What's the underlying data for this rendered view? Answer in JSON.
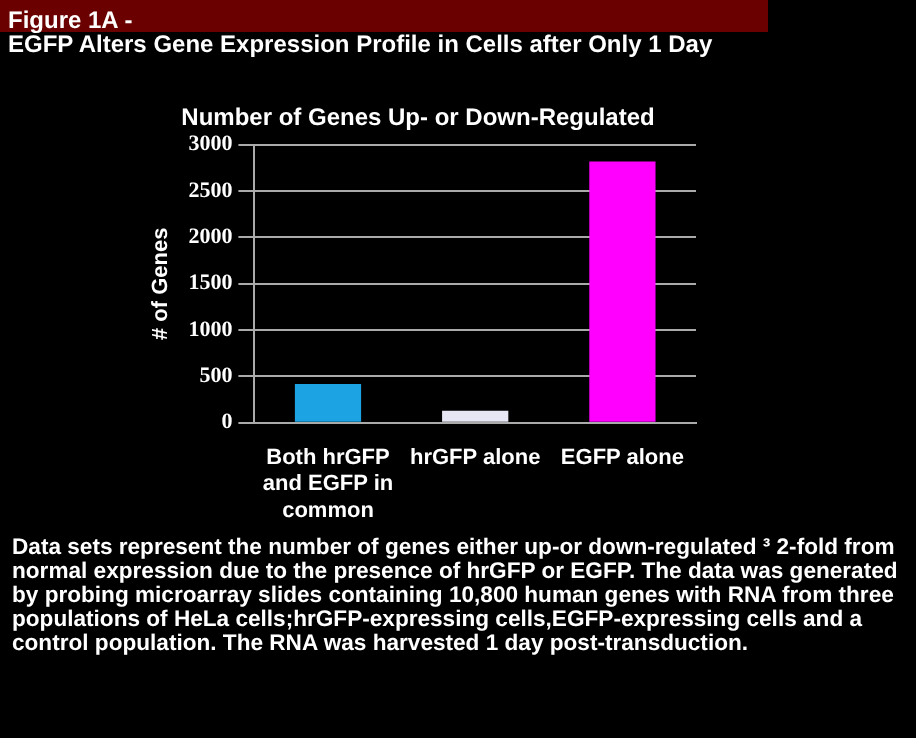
{
  "chart_data": {
    "type": "bar",
    "title": "Figure 1A -\nEGFP Alters Gene Expression Profile in Cells after Only 1 Day",
    "subtitle": "Number of Genes Up- or Down-Regulated",
    "ylabel": "# of Genes",
    "categories": [
      "Both hrGFP and EGFP in common",
      "hrGFP alone",
      "EGFP alone"
    ],
    "values": [
      420,
      130,
      2820
    ],
    "colors": [
      "#1ba3e3",
      "#e6e6f5",
      "#ff00ff"
    ],
    "ylim": [
      0,
      3000
    ],
    "yticks": [
      0,
      500,
      1000,
      1500,
      2000,
      2500,
      3000
    ],
    "grid": "y",
    "annotations": [
      "Data sets represent the number of genes either up-or down-regulated ³ 2-fold from normal expression due to the presence of hrGFP or EGFP.  The data was generated by probing microarray slides containing 10,800 human genes with RNA from three populations of HeLa cells;hrGFP-expressing cells,EGFP-expressing cells and a control population.  The RNA was harvested 1 day post-transduction."
    ]
  }
}
